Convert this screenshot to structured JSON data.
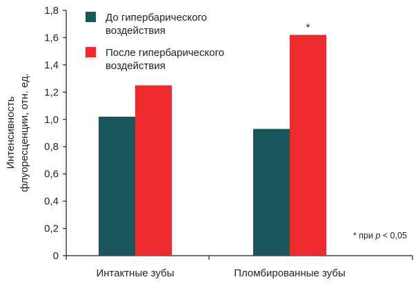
{
  "chart_data": {
    "type": "bar",
    "categories": [
      "Интактные зубы",
      "Пломбированные зубы"
    ],
    "series": [
      {
        "name": "До гипербарического воздействия",
        "legend_lines": [
          "До гипербарического",
          "воздействия"
        ],
        "values": [
          1.02,
          0.93
        ],
        "color": "#17565a"
      },
      {
        "name": "После гипербарического воздействия",
        "legend_lines": [
          "После гипербарического",
          "воздействия"
        ],
        "values": [
          1.25,
          1.62
        ],
        "color": "#ee2a2e"
      }
    ],
    "ylabel_lines": [
      "Интенсивность",
      "флуоресценции, отн. ед."
    ],
    "ylim": [
      0,
      1.8
    ],
    "yticks": [
      "0",
      "0,2",
      "0,4",
      "0,6",
      "0,8",
      "1,0",
      "1,2",
      "1,4",
      "1,6",
      "1,8"
    ],
    "significance": [
      {
        "category": 1,
        "series": 1,
        "mark": "*"
      }
    ],
    "legend_position": "top-left",
    "grid": false
  },
  "footnote": {
    "star": "* при ",
    "p": "p",
    "rest": " < 0,05"
  }
}
